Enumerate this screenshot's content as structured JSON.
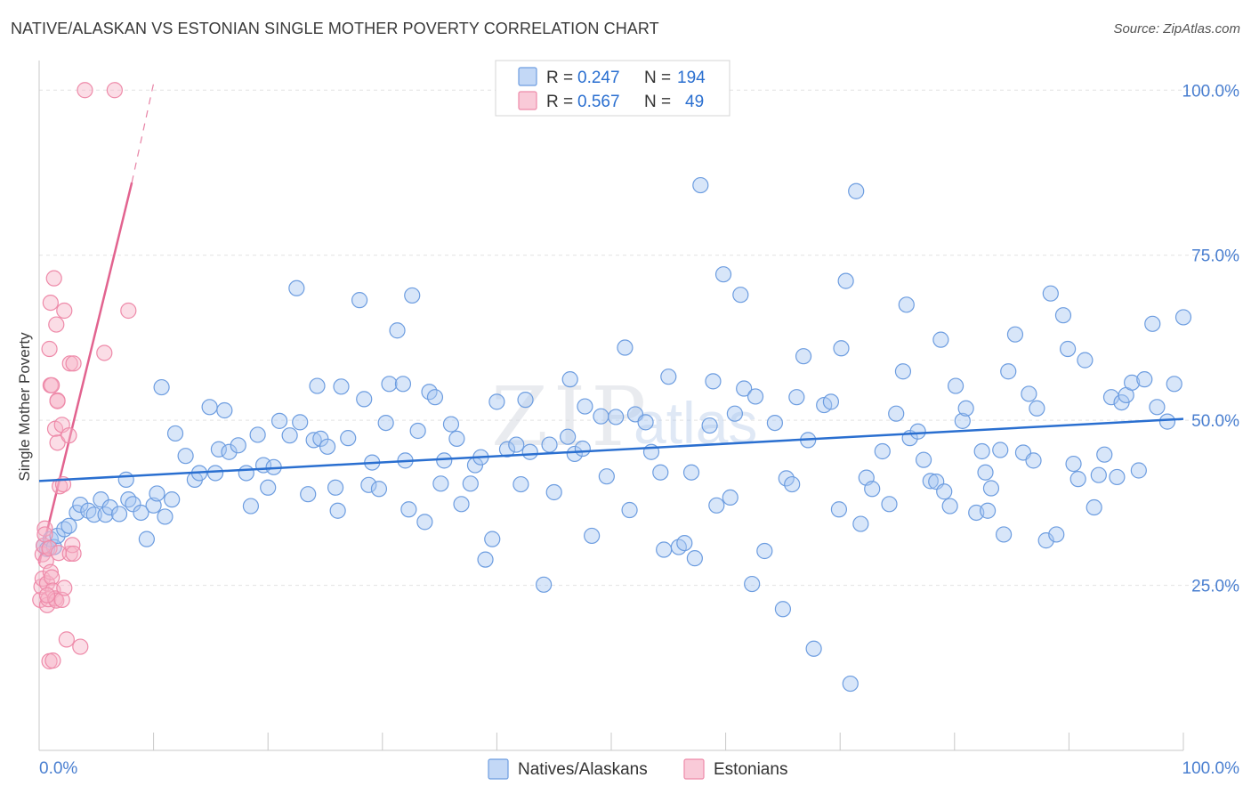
{
  "title": "NATIVE/ALASKAN VS ESTONIAN SINGLE MOTHER POVERTY CORRELATION CHART",
  "source": "Source: ZipAtlas.com",
  "watermark": {
    "zip": "ZIP",
    "atlas": "atlas"
  },
  "colors": {
    "blue_fill": "#a9c8f2",
    "blue_stroke": "#6d9de0",
    "blue_line": "#2a6fd0",
    "pink_fill": "#f6b3c7",
    "pink_stroke": "#ee8aa9",
    "pink_line": "#e2638f",
    "tick_label": "#4a7fd0",
    "grid": "#e2e2e2"
  },
  "legend": {
    "rows": [
      {
        "r_label": "R =",
        "r_value": "0.247",
        "n_label": "N =",
        "n_value": "194"
      },
      {
        "r_label": "R =",
        "r_value": "0.567",
        "n_label": "N =",
        "n_value": "49"
      }
    ]
  },
  "chart_data": {
    "type": "scatter",
    "title": "NATIVE/ALASKAN VS ESTONIAN SINGLE MOTHER POVERTY CORRELATION CHART",
    "xlabel": "",
    "ylabel": "Single Mother Poverty",
    "xlim": [
      0,
      100
    ],
    "ylim": [
      0,
      103
    ],
    "x_tick_labels": [
      "0.0%",
      "100.0%"
    ],
    "y_ticks": [
      25,
      50,
      75,
      100
    ],
    "y_tick_labels": [
      "25.0%",
      "50.0%",
      "75.0%",
      "100.0%"
    ],
    "legend_position": "bottom-center",
    "series": [
      {
        "name": "Natives/Alaskans",
        "R": 0.247,
        "N": 194,
        "trend": {
          "x1": 0,
          "y1": 40.8,
          "x2": 100,
          "y2": 50.2
        },
        "points": [
          [
            0.4,
            31
          ],
          [
            0.7,
            30.5
          ],
          [
            1.0,
            32
          ],
          [
            1.3,
            30.8
          ],
          [
            1.6,
            32.5
          ],
          [
            2.2,
            33.5
          ],
          [
            2.6,
            34
          ],
          [
            3.3,
            36
          ],
          [
            3.6,
            37.2
          ],
          [
            4.3,
            36.3
          ],
          [
            4.8,
            35.7
          ],
          [
            5.4,
            38
          ],
          [
            5.8,
            35.7
          ],
          [
            6.2,
            36.8
          ],
          [
            7.0,
            35.8
          ],
          [
            7.8,
            38
          ],
          [
            8.2,
            37.3
          ],
          [
            7.6,
            41
          ],
          [
            8.9,
            36
          ],
          [
            9.4,
            32
          ],
          [
            10.0,
            37.1
          ],
          [
            10.3,
            38.9
          ],
          [
            11.0,
            35.4
          ],
          [
            11.6,
            38
          ],
          [
            11.9,
            48
          ],
          [
            10.7,
            55
          ],
          [
            12.8,
            44.6
          ],
          [
            13.6,
            41
          ],
          [
            14.0,
            42
          ],
          [
            14.9,
            52
          ],
          [
            15.4,
            42
          ],
          [
            15.7,
            45.6
          ],
          [
            16.2,
            51.5
          ],
          [
            16.6,
            45.2
          ],
          [
            17.4,
            46.2
          ],
          [
            18.1,
            42
          ],
          [
            18.5,
            37
          ],
          [
            19.1,
            47.8
          ],
          [
            19.6,
            43.2
          ],
          [
            20.0,
            39.8
          ],
          [
            20.5,
            42.9
          ],
          [
            21.0,
            49.9
          ],
          [
            21.9,
            47.7
          ],
          [
            22.5,
            70
          ],
          [
            22.8,
            49.7
          ],
          [
            23.5,
            38.8
          ],
          [
            24.0,
            47
          ],
          [
            24.3,
            55.2
          ],
          [
            24.6,
            47.2
          ],
          [
            25.2,
            46
          ],
          [
            25.9,
            39.8
          ],
          [
            26.1,
            36.3
          ],
          [
            26.4,
            55.1
          ],
          [
            27.0,
            47.3
          ],
          [
            28.0,
            68.2
          ],
          [
            28.4,
            53.2
          ],
          [
            28.8,
            40.2
          ],
          [
            29.1,
            43.6
          ],
          [
            29.7,
            39.6
          ],
          [
            30.3,
            49.6
          ],
          [
            30.6,
            55.5
          ],
          [
            31.3,
            63.6
          ],
          [
            31.8,
            55.5
          ],
          [
            32.0,
            43.9
          ],
          [
            32.3,
            36.5
          ],
          [
            32.6,
            68.9
          ],
          [
            33.1,
            48.4
          ],
          [
            33.7,
            34.6
          ],
          [
            34.1,
            54.3
          ],
          [
            34.6,
            53.5
          ],
          [
            35.1,
            40.4
          ],
          [
            35.4,
            43.9
          ],
          [
            36.0,
            49.4
          ],
          [
            36.5,
            47.2
          ],
          [
            36.9,
            37.3
          ],
          [
            37.7,
            40.4
          ],
          [
            38.1,
            43.2
          ],
          [
            38.6,
            44.4
          ],
          [
            39.0,
            28.9
          ],
          [
            39.6,
            32
          ],
          [
            40.0,
            52.8
          ],
          [
            40.9,
            45.6
          ],
          [
            41.7,
            46.3
          ],
          [
            42.1,
            40.3
          ],
          [
            42.5,
            53.1
          ],
          [
            42.9,
            45.2
          ],
          [
            44.1,
            25.1
          ],
          [
            44.6,
            46.3
          ],
          [
            45.0,
            39.1
          ],
          [
            46.2,
            47.5
          ],
          [
            46.4,
            56.2
          ],
          [
            46.8,
            44.9
          ],
          [
            47.5,
            45.7
          ],
          [
            47.7,
            52.1
          ],
          [
            48.3,
            32.5
          ],
          [
            49.1,
            50.6
          ],
          [
            49.6,
            41.5
          ],
          [
            50.4,
            50.5
          ],
          [
            51.2,
            61
          ],
          [
            51.6,
            36.4
          ],
          [
            52.1,
            50.9
          ],
          [
            53.0,
            49.7
          ],
          [
            53.5,
            45.2
          ],
          [
            54.3,
            42.1
          ],
          [
            54.6,
            30.4
          ],
          [
            55.0,
            56.6
          ],
          [
            55.9,
            30.8
          ],
          [
            56.4,
            31.4
          ],
          [
            57.0,
            42.1
          ],
          [
            57.3,
            29.1
          ],
          [
            57.8,
            85.6
          ],
          [
            58.6,
            49.2
          ],
          [
            58.9,
            55.9
          ],
          [
            59.2,
            37.1
          ],
          [
            59.8,
            72.1
          ],
          [
            60.4,
            38.3
          ],
          [
            60.8,
            51
          ],
          [
            61.3,
            69
          ],
          [
            61.6,
            54.8
          ],
          [
            62.3,
            25.2
          ],
          [
            62.6,
            53.6
          ],
          [
            63.4,
            30.2
          ],
          [
            64.3,
            49.6
          ],
          [
            65.0,
            21.4
          ],
          [
            65.3,
            41.2
          ],
          [
            65.8,
            40.3
          ],
          [
            66.2,
            53.5
          ],
          [
            66.8,
            59.7
          ],
          [
            67.2,
            47
          ],
          [
            67.7,
            15.4
          ],
          [
            68.6,
            52.3
          ],
          [
            69.2,
            52.8
          ],
          [
            69.9,
            36.5
          ],
          [
            70.1,
            60.9
          ],
          [
            70.5,
            71.1
          ],
          [
            70.9,
            10.1
          ],
          [
            71.4,
            84.7
          ],
          [
            71.8,
            34.3
          ],
          [
            72.3,
            41.3
          ],
          [
            72.8,
            39.6
          ],
          [
            73.7,
            45.3
          ],
          [
            74.3,
            37.3
          ],
          [
            74.9,
            51
          ],
          [
            75.5,
            57.4
          ],
          [
            75.8,
            67.5
          ],
          [
            76.1,
            47.3
          ],
          [
            76.8,
            48.3
          ],
          [
            77.3,
            44
          ],
          [
            77.9,
            40.8
          ],
          [
            78.4,
            40.7
          ],
          [
            78.8,
            62.2
          ],
          [
            79.1,
            39.2
          ],
          [
            79.6,
            37
          ],
          [
            80.1,
            55.2
          ],
          [
            80.7,
            49.9
          ],
          [
            81.0,
            51.8
          ],
          [
            81.9,
            36
          ],
          [
            82.4,
            45.3
          ],
          [
            82.7,
            42.1
          ],
          [
            82.9,
            36.3
          ],
          [
            83.2,
            39.7
          ],
          [
            84.0,
            45.5
          ],
          [
            84.3,
            32.7
          ],
          [
            84.7,
            57.4
          ],
          [
            85.3,
            63
          ],
          [
            86.0,
            45.1
          ],
          [
            86.5,
            54
          ],
          [
            86.9,
            43.9
          ],
          [
            87.2,
            51.8
          ],
          [
            88.0,
            31.8
          ],
          [
            88.4,
            69.2
          ],
          [
            88.9,
            32.7
          ],
          [
            89.5,
            65.9
          ],
          [
            89.9,
            60.8
          ],
          [
            90.4,
            43.4
          ],
          [
            90.8,
            41.1
          ],
          [
            91.4,
            59.1
          ],
          [
            92.2,
            36.8
          ],
          [
            92.6,
            41.7
          ],
          [
            93.1,
            44.8
          ],
          [
            93.7,
            53.5
          ],
          [
            94.2,
            41.4
          ],
          [
            94.6,
            52.7
          ],
          [
            95.0,
            53.8
          ],
          [
            95.5,
            55.7
          ],
          [
            96.1,
            42.4
          ],
          [
            96.6,
            56.2
          ],
          [
            97.3,
            64.6
          ],
          [
            97.7,
            52
          ],
          [
            98.6,
            49.8
          ],
          [
            99.2,
            55.5
          ],
          [
            100.0,
            65.6
          ]
        ]
      },
      {
        "name": "Estonians",
        "R": 0.567,
        "N": 49,
        "trend": {
          "x1": 0,
          "y1": 28.3,
          "x2": 8.1,
          "y2": 86
        },
        "trend_dashed": {
          "x1": 8.1,
          "y1": 86,
          "x2": 10.0,
          "y2": 101
        },
        "points": [
          [
            0.1,
            22.8
          ],
          [
            0.2,
            24.8
          ],
          [
            0.3,
            26
          ],
          [
            0.3,
            29.7
          ],
          [
            0.4,
            31
          ],
          [
            0.5,
            33.6
          ],
          [
            0.5,
            32.7
          ],
          [
            0.6,
            28.7
          ],
          [
            0.7,
            22
          ],
          [
            0.7,
            25.3
          ],
          [
            0.8,
            22.9
          ],
          [
            0.9,
            13.5
          ],
          [
            0.9,
            30.6
          ],
          [
            0.9,
            60.8
          ],
          [
            1.0,
            27
          ],
          [
            1.0,
            67.8
          ],
          [
            1.1,
            26.2
          ],
          [
            1.2,
            13.6
          ],
          [
            1.2,
            24.2
          ],
          [
            1.3,
            71.5
          ],
          [
            1.4,
            23
          ],
          [
            1.4,
            48.7
          ],
          [
            1.5,
            64.5
          ],
          [
            1.5,
            22.7
          ],
          [
            1.6,
            53
          ],
          [
            1.6,
            46.6
          ],
          [
            1.7,
            29.9
          ],
          [
            1.8,
            40
          ],
          [
            2.0,
            22.8
          ],
          [
            2.0,
            49.3
          ],
          [
            2.1,
            40.3
          ],
          [
            2.2,
            24.6
          ],
          [
            2.2,
            66.6
          ],
          [
            2.4,
            16.8
          ],
          [
            2.6,
            47.7
          ],
          [
            2.7,
            29.8
          ],
          [
            2.7,
            58.6
          ],
          [
            2.9,
            31.1
          ],
          [
            3.0,
            58.6
          ],
          [
            3.0,
            29.8
          ],
          [
            3.6,
            15.7
          ],
          [
            1.0,
            55.3
          ],
          [
            1.6,
            52.9
          ],
          [
            5.7,
            60.2
          ],
          [
            7.8,
            66.6
          ],
          [
            4.0,
            100
          ],
          [
            6.6,
            100
          ],
          [
            0.7,
            23.5
          ],
          [
            1.1,
            55.3
          ]
        ]
      }
    ]
  },
  "legend_bottom": [
    {
      "label": "Natives/Alaskans"
    },
    {
      "label": "Estonians"
    }
  ]
}
